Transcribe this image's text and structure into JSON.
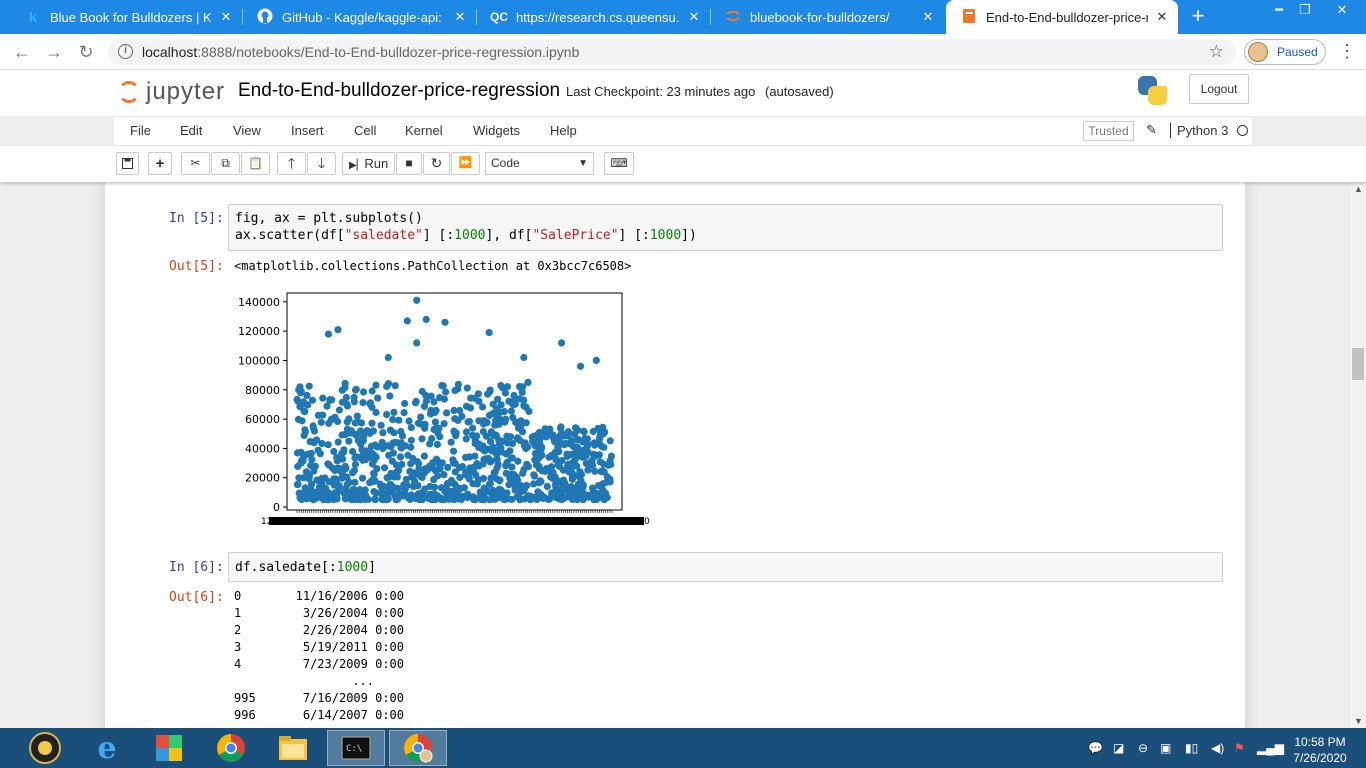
{
  "browser": {
    "tabs": [
      {
        "favicon": "k",
        "favicon_color": "#20beff",
        "title": "Blue Book for Bulldozers | Kaggl"
      },
      {
        "favicon": "github-icon",
        "favicon_color": "#ffffff",
        "title": "GitHub - Kaggle/kaggle-api: Offi"
      },
      {
        "favicon": "QC",
        "favicon_color": "#ffffff",
        "title": "https://research.cs.queensu.ca/h"
      },
      {
        "favicon": "jupyter-icon",
        "favicon_color": "#f37726",
        "title": "bluebook-for-bulldozers/"
      },
      {
        "favicon": "notebook-icon",
        "favicon_color": "#f37726",
        "title": "End-to-End-bulldozer-price-reg"
      }
    ],
    "url_host": "localhost",
    "url_rest": ":8888/notebooks/End-to-End-bulldozer-price-regression.ipynb",
    "profile_label": "Paused"
  },
  "jupyter": {
    "logo_text": "jupyter",
    "notebook_title": "End-to-End-bulldozer-price-regression",
    "checkpoint": "Last Checkpoint: 23 minutes ago",
    "autosave": "(autosaved)",
    "logout": "Logout",
    "menus": [
      "File",
      "Edit",
      "View",
      "Insert",
      "Cell",
      "Kernel",
      "Widgets",
      "Help"
    ],
    "trusted": "Trusted",
    "kernel": "Python 3",
    "run_label": "Run",
    "cell_type": "Code",
    "accent_color": "#f37726"
  },
  "cells": {
    "c5": {
      "in_prompt": "In [5]:",
      "line1": "fig, ax = plt.subplots()",
      "line2_a": "ax.scatter(df[",
      "line2_str1": "\"saledate\"",
      "line2_b": "] [:",
      "line2_num1": "1000",
      "line2_c": "], df[",
      "line2_str2": "\"SalePrice\"",
      "line2_d": "] [:",
      "line2_num2": "1000",
      "line2_e": "])",
      "out_prompt": "Out[5]:",
      "out_text": "<matplotlib.collections.PathCollection at 0x3bcc7c6508>"
    },
    "c6": {
      "in_prompt": "In [6]:",
      "code_a": "df.saledate[:",
      "code_num": "1000",
      "code_b": "]",
      "out_prompt": "Out[6]:",
      "rows": [
        {
          "idx": "0",
          "val": "11/16/2006 0:00"
        },
        {
          "idx": "1",
          "val": "3/26/2004 0:00"
        },
        {
          "idx": "2",
          "val": "2/26/2004 0:00"
        },
        {
          "idx": "3",
          "val": "5/19/2011 0:00"
        },
        {
          "idx": "4",
          "val": "7/23/2009 0:00"
        },
        {
          "idx": "",
          "val": "..."
        },
        {
          "idx": "995",
          "val": "7/16/2009 0:00"
        },
        {
          "idx": "996",
          "val": "6/14/2007 0:00"
        }
      ]
    }
  },
  "chart_data": {
    "type": "scatter",
    "title": "",
    "xlabel": "",
    "ylabel": "",
    "yticks": [
      0,
      20000,
      40000,
      60000,
      80000,
      100000,
      120000,
      140000
    ],
    "ylim": [
      -2000,
      146000
    ],
    "color": "#1f77b4",
    "x_tick_label_left": "12",
    "x_tick_label_right": "0",
    "n_points": 1000,
    "highlights": [
      {
        "x": 0.38,
        "y": 141000
      },
      {
        "x": 0.41,
        "y": 128000
      },
      {
        "x": 0.47,
        "y": 126000
      },
      {
        "x": 0.35,
        "y": 127000
      },
      {
        "x": 0.13,
        "y": 121000
      },
      {
        "x": 0.1,
        "y": 118000
      },
      {
        "x": 0.61,
        "y": 119000
      },
      {
        "x": 0.84,
        "y": 112000
      },
      {
        "x": 0.38,
        "y": 112000
      },
      {
        "x": 0.29,
        "y": 102000
      },
      {
        "x": 0.95,
        "y": 100000
      },
      {
        "x": 0.9,
        "y": 96000
      },
      {
        "x": 0.72,
        "y": 102000
      },
      {
        "x": 0.97,
        "y": 50000
      },
      {
        "x": 0.95,
        "y": 8000
      }
    ]
  },
  "taskbar": {
    "time": "10:58 PM",
    "date": "7/26/2020"
  }
}
